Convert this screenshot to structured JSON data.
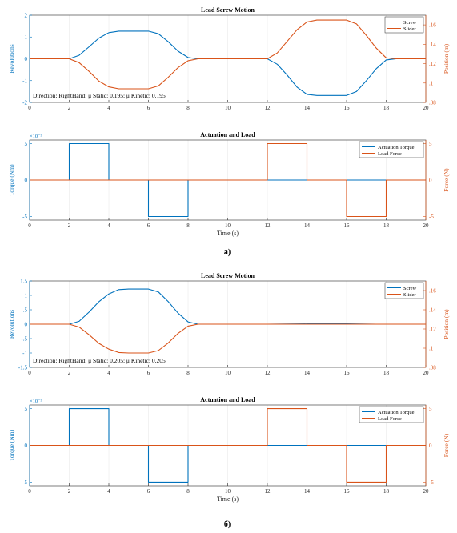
{
  "colors": {
    "screw": "#0072BD",
    "slider": "#D95319",
    "axis": "#262626",
    "grid": "#e6e6e6"
  },
  "panels": [
    {
      "id": "a",
      "label": "а)",
      "motion": {
        "title": "Lead Screw Motion",
        "ylabel_left": "Revolutions",
        "ylabel_right": "Position (m)",
        "annotation": "Direction: RightHand; μ Static: 0.195; μ Kinetic: 0.195",
        "legend": [
          "Screw",
          "Slider"
        ]
      },
      "load": {
        "title": "Actuation and Load",
        "ylabel_left": "Torque (Nm)",
        "ylabel_right": "Force (N)",
        "xlabel": "Time (s)",
        "exponent": "×10⁻³",
        "legend": [
          "Actuation Torque",
          "Load Force"
        ]
      }
    },
    {
      "id": "b",
      "label": "б)",
      "motion": {
        "title": "Lead Screw Motion",
        "ylabel_left": "Revolutions",
        "ylabel_right": "Position (m)",
        "annotation": "Direction: RightHand; μ Static: 0.205; μ Kinetic: 0.205",
        "legend": [
          "Screw",
          "Slider"
        ]
      },
      "load": {
        "title": "Actuation and Load",
        "ylabel_left": "Torque (Nm)",
        "ylabel_right": "Force (N)",
        "xlabel": "Time (s)",
        "exponent": "×10⁻³",
        "legend": [
          "Actuation Torque",
          "Load Force"
        ]
      }
    }
  ],
  "chart_data": [
    {
      "type": "line",
      "panel": "a",
      "title": "Lead Screw Motion",
      "ylabel": "Revolutions",
      "y2label": "Position (m)",
      "xlim": [
        0,
        20
      ],
      "ylim": [
        -2,
        2
      ],
      "y2lim": [
        0.08,
        0.17
      ],
      "xticks": [
        0,
        2,
        4,
        6,
        8,
        10,
        12,
        14,
        16,
        18,
        20
      ],
      "yticks": [
        -2,
        -1,
        0,
        1,
        2
      ],
      "y2ticks": [
        0.08,
        0.1,
        0.12,
        0.14,
        0.16
      ],
      "legend_position": "top-right",
      "series": [
        {
          "name": "Screw",
          "axis": "left",
          "x": [
            0,
            2,
            2.5,
            3,
            3.5,
            4,
            4.5,
            5,
            5.5,
            6,
            6.5,
            7,
            7.5,
            8,
            8.5,
            10,
            12,
            12.5,
            13,
            13.5,
            14,
            14.5,
            15,
            15.5,
            16,
            16.5,
            17,
            17.5,
            18,
            18.5,
            20
          ],
          "y": [
            0,
            0,
            0.16,
            0.55,
            0.95,
            1.2,
            1.27,
            1.27,
            1.27,
            1.27,
            1.15,
            0.78,
            0.35,
            0.06,
            0,
            0,
            0,
            -0.25,
            -0.75,
            -1.3,
            -1.63,
            -1.68,
            -1.68,
            -1.68,
            -1.68,
            -1.5,
            -1.0,
            -0.45,
            -0.05,
            0,
            0
          ]
        },
        {
          "name": "Slider",
          "axis": "right",
          "x": [
            0,
            2,
            2.5,
            3,
            3.5,
            4,
            4.5,
            5,
            5.5,
            6,
            6.5,
            7,
            7.5,
            8,
            8.5,
            10,
            12,
            12.5,
            13,
            13.5,
            14,
            14.5,
            15,
            15.5,
            16,
            16.5,
            17,
            17.5,
            18,
            18.5,
            20
          ],
          "y": [
            0.125,
            0.125,
            0.121,
            0.112,
            0.102,
            0.096,
            0.094,
            0.094,
            0.094,
            0.094,
            0.097,
            0.106,
            0.116,
            0.123,
            0.125,
            0.125,
            0.125,
            0.131,
            0.143,
            0.155,
            0.163,
            0.165,
            0.165,
            0.165,
            0.165,
            0.161,
            0.149,
            0.136,
            0.126,
            0.125,
            0.125
          ]
        }
      ]
    },
    {
      "type": "line",
      "panel": "a",
      "title": "Actuation and Load",
      "xlabel": "Time (s)",
      "ylabel": "Torque (Nm)",
      "y2label": "Force (N)",
      "xlim": [
        0,
        20
      ],
      "ylim": [
        -0.0055,
        0.0055
      ],
      "y2lim": [
        -5.5,
        5.5
      ],
      "xticks": [
        0,
        2,
        4,
        6,
        8,
        10,
        12,
        14,
        16,
        18,
        20
      ],
      "yticks": [
        -5,
        0,
        5
      ],
      "y2ticks": [
        -5,
        0,
        5
      ],
      "ytick_scale": "x10^-3",
      "legend_position": "top-right",
      "series": [
        {
          "name": "Actuation Torque",
          "axis": "left",
          "x": [
            0,
            2,
            2,
            4,
            4,
            6,
            6,
            8,
            8,
            20
          ],
          "y": [
            0,
            0,
            0.005,
            0.005,
            0,
            0,
            -0.005,
            -0.005,
            0,
            0
          ]
        },
        {
          "name": "Load Force",
          "axis": "right",
          "x": [
            0,
            12,
            12,
            14,
            14,
            16,
            16,
            18,
            18,
            20
          ],
          "y": [
            0,
            0,
            5,
            5,
            0,
            0,
            -5,
            -5,
            0,
            0
          ]
        }
      ]
    },
    {
      "type": "line",
      "panel": "b",
      "title": "Lead Screw Motion",
      "ylabel": "Revolutions",
      "y2label": "Position (m)",
      "xlim": [
        0,
        20
      ],
      "ylim": [
        -1.5,
        1.5
      ],
      "y2lim": [
        0.08,
        0.17
      ],
      "xticks": [
        0,
        2,
        4,
        6,
        8,
        10,
        12,
        14,
        16,
        18,
        20
      ],
      "yticks": [
        -1.5,
        -1,
        -0.5,
        0,
        0.5,
        1,
        1.5
      ],
      "y2ticks": [
        0.08,
        0.1,
        0.12,
        0.14,
        0.16
      ],
      "legend_position": "top-right",
      "series": [
        {
          "name": "Screw",
          "axis": "left",
          "x": [
            0,
            2,
            2.5,
            3,
            3.5,
            4,
            4.5,
            5,
            5.5,
            6,
            6.5,
            7,
            7.5,
            8,
            8.5,
            10,
            12,
            14,
            16,
            17.5,
            18,
            20
          ],
          "y": [
            0,
            0,
            0.1,
            0.42,
            0.78,
            1.05,
            1.2,
            1.22,
            1.22,
            1.22,
            1.12,
            0.78,
            0.38,
            0.08,
            0,
            0,
            0,
            0.01,
            0.01,
            0,
            0,
            0
          ]
        },
        {
          "name": "Slider",
          "axis": "right",
          "x": [
            0,
            2,
            2.5,
            3,
            3.5,
            4,
            4.5,
            5,
            5.5,
            6,
            6.5,
            7,
            7.5,
            8,
            8.5,
            10,
            12,
            14,
            16,
            17.5,
            18,
            20
          ],
          "y": [
            0.125,
            0.125,
            0.122,
            0.114,
            0.105,
            0.099,
            0.0955,
            0.095,
            0.095,
            0.095,
            0.0975,
            0.1055,
            0.1155,
            0.123,
            0.125,
            0.125,
            0.125,
            0.125,
            0.125,
            0.125,
            0.125,
            0.125
          ]
        }
      ]
    },
    {
      "type": "line",
      "panel": "b",
      "title": "Actuation and Load",
      "xlabel": "Time (s)",
      "ylabel": "Torque (Nm)",
      "y2label": "Force (N)",
      "xlim": [
        0,
        20
      ],
      "ylim": [
        -0.0055,
        0.0055
      ],
      "y2lim": [
        -5.5,
        5.5
      ],
      "xticks": [
        0,
        2,
        4,
        6,
        8,
        10,
        12,
        14,
        16,
        18,
        20
      ],
      "yticks": [
        -5,
        0,
        5
      ],
      "y2ticks": [
        -5,
        0,
        5
      ],
      "ytick_scale": "x10^-3",
      "legend_position": "top-right",
      "series": [
        {
          "name": "Actuation Torque",
          "axis": "left",
          "x": [
            0,
            2,
            2,
            4,
            4,
            6,
            6,
            8,
            8,
            20
          ],
          "y": [
            0,
            0,
            0.005,
            0.005,
            0,
            0,
            -0.005,
            -0.005,
            0,
            0
          ]
        },
        {
          "name": "Load Force",
          "axis": "right",
          "x": [
            0,
            12,
            12,
            14,
            14,
            16,
            16,
            18,
            18,
            20
          ],
          "y": [
            0,
            0,
            5,
            5,
            0,
            0,
            -5,
            -5,
            0,
            0
          ]
        }
      ]
    }
  ]
}
